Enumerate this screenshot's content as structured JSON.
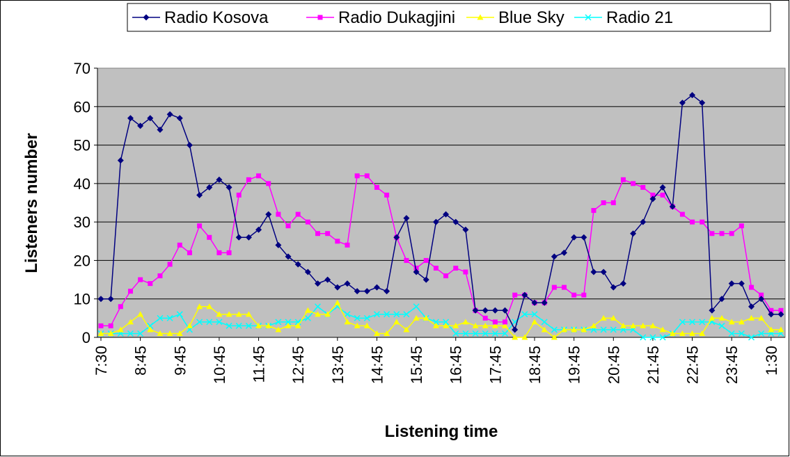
{
  "chart_data": {
    "type": "line",
    "x_label": "Listening time",
    "y_label": "Listeners number",
    "categories": [
      "7:30",
      null,
      null,
      null,
      "8:45",
      null,
      null,
      null,
      "9:45",
      null,
      null,
      null,
      "10:45",
      null,
      null,
      null,
      "11:45",
      null,
      null,
      null,
      "12:45",
      null,
      null,
      null,
      "13:45",
      null,
      null,
      null,
      "14:45",
      null,
      null,
      null,
      "15:45",
      null,
      null,
      null,
      "16:45",
      null,
      null,
      null,
      "17:45",
      null,
      null,
      null,
      "18:45",
      null,
      null,
      null,
      "19:45",
      null,
      null,
      null,
      "20:45",
      null,
      null,
      null,
      "21:45",
      null,
      null,
      null,
      "22:45",
      null,
      null,
      null,
      "23:45",
      null,
      null,
      null,
      "1:30",
      null
    ],
    "series": [
      {
        "name": "Radio Kosova",
        "color": "#000080",
        "marker": "diamond",
        "values": [
          10,
          10,
          46,
          57,
          55,
          57,
          54,
          58,
          57,
          50,
          37,
          39,
          41,
          39,
          26,
          26,
          28,
          32,
          24,
          21,
          19,
          17,
          14,
          15,
          13,
          14,
          12,
          12,
          13,
          12,
          26,
          31,
          17,
          15,
          30,
          32,
          30,
          28,
          7,
          7,
          7,
          7,
          2,
          11,
          9,
          9,
          21,
          22,
          26,
          26,
          17,
          17,
          13,
          14,
          27,
          30,
          36,
          39,
          34,
          61,
          63,
          61,
          7,
          10,
          14,
          14,
          8,
          10,
          6,
          6
        ]
      },
      {
        "name": "Radio Dukagjini",
        "color": "#ff00ff",
        "marker": "square",
        "values": [
          3,
          3,
          8,
          12,
          15,
          14,
          16,
          19,
          24,
          22,
          29,
          26,
          22,
          22,
          37,
          41,
          42,
          40,
          32,
          29,
          32,
          30,
          27,
          27,
          25,
          24,
          42,
          42,
          39,
          37,
          26,
          20,
          18,
          20,
          18,
          16,
          18,
          17,
          7,
          5,
          4,
          4,
          11,
          11,
          9,
          9,
          13,
          13,
          11,
          11,
          33,
          35,
          35,
          41,
          40,
          39,
          37,
          37,
          34,
          32,
          30,
          30,
          27,
          27,
          27,
          29,
          13,
          11,
          7,
          7
        ]
      },
      {
        "name": "Blue Sky",
        "color": "#ffff00",
        "marker": "triangle",
        "values": [
          1,
          1,
          2,
          4,
          6,
          2,
          1,
          1,
          1,
          3,
          8,
          8,
          6,
          6,
          6,
          6,
          3,
          3,
          2,
          3,
          3,
          7,
          6,
          6,
          9,
          4,
          3,
          3,
          1,
          1,
          4,
          2,
          5,
          5,
          3,
          3,
          3,
          4,
          3,
          3,
          3,
          3,
          0,
          0,
          4,
          2,
          0,
          2,
          2,
          2,
          3,
          5,
          5,
          3,
          3,
          3,
          3,
          2,
          1,
          1,
          1,
          1,
          5,
          5,
          4,
          4,
          5,
          5,
          2,
          2
        ]
      },
      {
        "name": "Radio 21",
        "color": "#00ffff",
        "marker": "x",
        "values": [
          1,
          1,
          1,
          1,
          1,
          3,
          5,
          5,
          6,
          2,
          4,
          4,
          4,
          3,
          3,
          3,
          3,
          3,
          4,
          4,
          4,
          5,
          8,
          6,
          8,
          6,
          5,
          5,
          6,
          6,
          6,
          6,
          8,
          5,
          4,
          4,
          1,
          1,
          1,
          1,
          1,
          1,
          4,
          6,
          6,
          4,
          2,
          2,
          2,
          2,
          2,
          2,
          2,
          2,
          2,
          0,
          0,
          0,
          1,
          4,
          4,
          4,
          4,
          3,
          1,
          1,
          0,
          1,
          1,
          1
        ]
      }
    ],
    "ylim": [
      0,
      70
    ],
    "yticks": [
      0,
      10,
      20,
      30,
      40,
      50,
      60,
      70
    ],
    "grid": true,
    "legend": "top"
  }
}
